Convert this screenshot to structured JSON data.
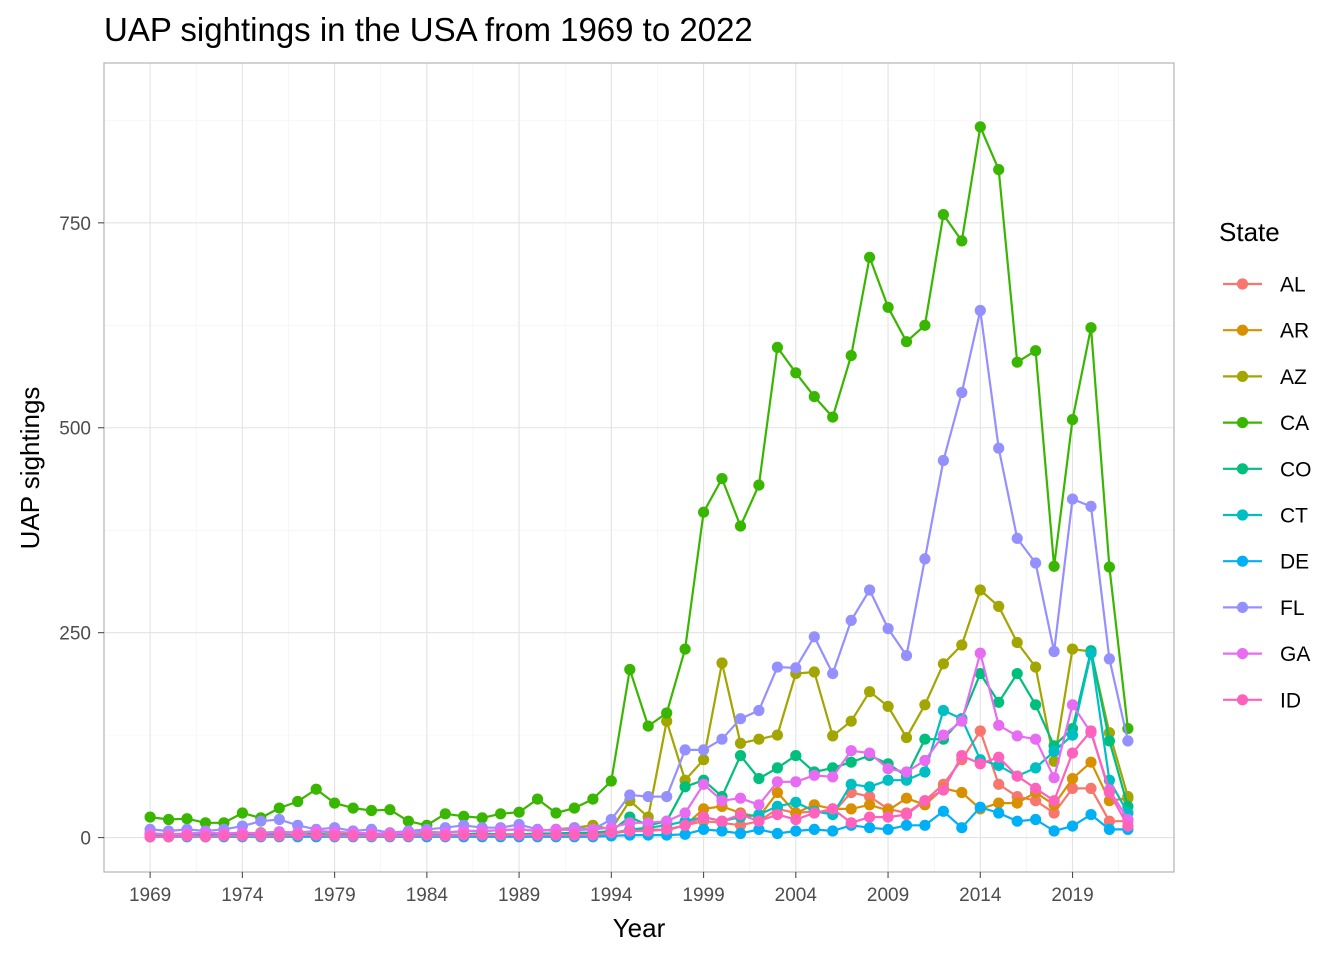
{
  "chart_data": {
    "type": "line",
    "title": "UAP sightings in the USA from 1969 to 2022",
    "xlabel": "Year",
    "ylabel": "UAP sightings",
    "xlim": [
      1966.5,
      2024.5
    ],
    "ylim": [
      -42,
      945
    ],
    "x_ticks": [
      "1969",
      "1974",
      "1979",
      "1984",
      "1989",
      "1994",
      "1999",
      "2004",
      "2009",
      "2014",
      "2019"
    ],
    "y_ticks": [
      "0",
      "250",
      "500",
      "750"
    ],
    "grid": true,
    "legend": {
      "title": "State",
      "position": "right"
    },
    "x": [
      1969,
      1970,
      1971,
      1972,
      1973,
      1974,
      1975,
      1976,
      1977,
      1978,
      1979,
      1980,
      1981,
      1982,
      1983,
      1984,
      1985,
      1986,
      1987,
      1988,
      1989,
      1990,
      1991,
      1992,
      1993,
      1994,
      1995,
      1996,
      1997,
      1998,
      1999,
      2000,
      2001,
      2002,
      2003,
      2004,
      2005,
      2006,
      2007,
      2008,
      2009,
      2010,
      2011,
      2012,
      2013,
      2014,
      2015,
      2016,
      2017,
      2018,
      2019,
      2020,
      2021,
      2022
    ],
    "series": [
      {
        "name": "AL",
        "color": "#F8766D",
        "values": [
          3,
          2,
          3,
          2,
          3,
          3,
          2,
          3,
          3,
          4,
          3,
          2,
          3,
          2,
          3,
          3,
          2,
          3,
          4,
          3,
          3,
          4,
          3,
          4,
          4,
          6,
          8,
          10,
          9,
          15,
          20,
          18,
          15,
          20,
          35,
          30,
          32,
          30,
          55,
          50,
          35,
          30,
          45,
          65,
          95,
          130,
          65,
          50,
          45,
          30,
          60,
          60,
          20,
          20
        ]
      },
      {
        "name": "AR",
        "color": "#D89000",
        "values": [
          2,
          2,
          2,
          3,
          2,
          2,
          3,
          2,
          3,
          2,
          2,
          3,
          2,
          3,
          2,
          2,
          3,
          2,
          3,
          2,
          3,
          2,
          3,
          2,
          3,
          5,
          8,
          10,
          9,
          15,
          35,
          38,
          30,
          25,
          55,
          30,
          40,
          35,
          35,
          40,
          33,
          48,
          40,
          60,
          55,
          35,
          42,
          42,
          55,
          40,
          72,
          92,
          45,
          48
        ]
      },
      {
        "name": "AZ",
        "color": "#A3A500",
        "values": [
          5,
          4,
          4,
          5,
          5,
          5,
          6,
          7,
          6,
          8,
          6,
          5,
          5,
          4,
          6,
          7,
          6,
          8,
          8,
          9,
          10,
          8,
          10,
          12,
          15,
          10,
          45,
          25,
          142,
          70,
          95,
          213,
          115,
          120,
          125,
          200,
          202,
          124,
          142,
          178,
          160,
          122,
          162,
          212,
          235,
          302,
          282,
          238,
          208,
          93,
          230,
          227,
          128,
          50
        ]
      },
      {
        "name": "CA",
        "color": "#39B600",
        "values": [
          25,
          22,
          23,
          18,
          18,
          30,
          24,
          36,
          44,
          59,
          42,
          36,
          33,
          34,
          20,
          15,
          29,
          26,
          24,
          29,
          31,
          47,
          30,
          36,
          47,
          69,
          205,
          136,
          152,
          230,
          397,
          438,
          380,
          430,
          598,
          567,
          538,
          513,
          588,
          708,
          647,
          605,
          625,
          760,
          728,
          867,
          815,
          580,
          594,
          331,
          510,
          622,
          330,
          133
        ]
      },
      {
        "name": "CO",
        "color": "#00BF7D",
        "values": [
          3,
          2,
          2,
          3,
          3,
          3,
          4,
          4,
          3,
          5,
          3,
          3,
          4,
          3,
          3,
          4,
          3,
          4,
          5,
          4,
          4,
          5,
          5,
          6,
          6,
          8,
          25,
          15,
          20,
          62,
          70,
          50,
          100,
          72,
          85,
          100,
          80,
          85,
          92,
          100,
          90,
          75,
          120,
          120,
          145,
          200,
          165,
          200,
          162,
          112,
          133,
          228,
          118,
          38
        ]
      },
      {
        "name": "CT",
        "color": "#00BFC4",
        "values": [
          3,
          2,
          3,
          2,
          3,
          2,
          3,
          3,
          2,
          4,
          3,
          3,
          2,
          3,
          3,
          2,
          3,
          3,
          2,
          3,
          3,
          3,
          4,
          3,
          4,
          5,
          10,
          12,
          15,
          20,
          25,
          20,
          25,
          28,
          38,
          43,
          32,
          28,
          65,
          62,
          70,
          70,
          80,
          155,
          145,
          95,
          88,
          75,
          85,
          105,
          125,
          225,
          70,
          30
        ]
      },
      {
        "name": "DE",
        "color": "#00B0F6",
        "values": [
          1,
          1,
          1,
          1,
          1,
          1,
          1,
          1,
          1,
          1,
          1,
          1,
          1,
          1,
          1,
          1,
          1,
          1,
          1,
          1,
          1,
          1,
          1,
          1,
          1,
          2,
          3,
          3,
          3,
          4,
          10,
          8,
          5,
          10,
          5,
          8,
          10,
          8,
          15,
          12,
          10,
          15,
          15,
          32,
          12,
          37,
          30,
          20,
          22,
          8,
          14,
          28,
          10,
          10
        ]
      },
      {
        "name": "FL",
        "color": "#9590FF",
        "values": [
          10,
          8,
          10,
          8,
          10,
          14,
          20,
          22,
          15,
          10,
          12,
          8,
          10,
          6,
          8,
          10,
          12,
          15,
          12,
          12,
          16,
          10,
          8,
          12,
          10,
          22,
          52,
          50,
          50,
          107,
          107,
          120,
          145,
          155,
          208,
          207,
          245,
          200,
          265,
          302,
          255,
          222,
          340,
          460,
          543,
          643,
          475,
          365,
          335,
          227,
          413,
          404,
          218,
          118
        ]
      },
      {
        "name": "GA",
        "color": "#E76BF3",
        "values": [
          5,
          4,
          5,
          6,
          5,
          6,
          5,
          7,
          6,
          8,
          7,
          6,
          5,
          5,
          6,
          7,
          6,
          8,
          8,
          9,
          10,
          8,
          10,
          9,
          10,
          12,
          18,
          18,
          20,
          30,
          65,
          45,
          48,
          40,
          68,
          68,
          76,
          74,
          106,
          103,
          84,
          80,
          94,
          125,
          142,
          225,
          137,
          124,
          120,
          73,
          162,
          128,
          58,
          22
        ]
      },
      {
        "name": "ID",
        "color": "#FF62BC",
        "values": [
          1,
          1,
          2,
          1,
          2,
          2,
          2,
          2,
          3,
          3,
          2,
          2,
          2,
          2,
          2,
          3,
          2,
          3,
          3,
          3,
          3,
          3,
          3,
          3,
          3,
          6,
          8,
          8,
          10,
          15,
          25,
          20,
          28,
          20,
          28,
          22,
          30,
          35,
          18,
          25,
          25,
          28,
          45,
          58,
          100,
          90,
          98,
          75,
          60,
          45,
          103,
          130,
          55,
          14
        ]
      }
    ]
  }
}
